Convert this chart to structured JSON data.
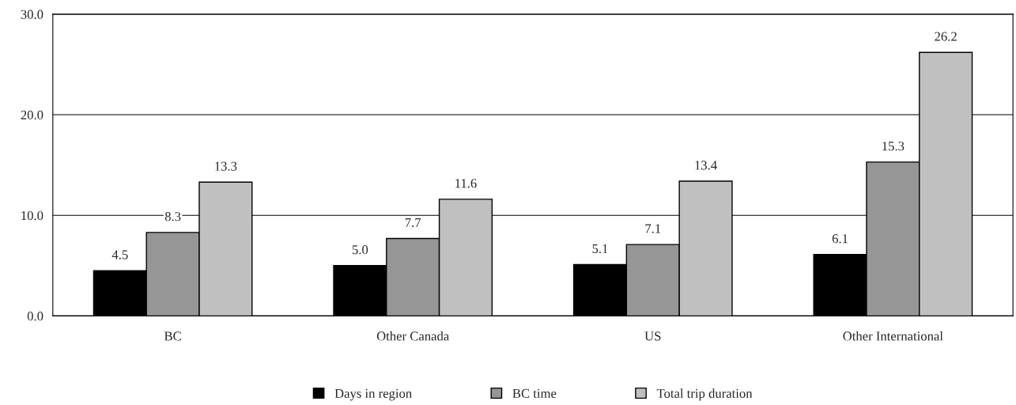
{
  "chart_data": {
    "type": "bar",
    "categories": [
      "BC",
      "Other Canada",
      "US",
      "Other International"
    ],
    "series": [
      {
        "name": "Days in region",
        "color": "#000000",
        "values": [
          4.5,
          5.0,
          5.1,
          6.1
        ],
        "value_labels": [
          "4.5",
          "5.0",
          "5.1",
          "6.1"
        ]
      },
      {
        "name": "BC time",
        "color": "#969696",
        "values": [
          8.3,
          7.7,
          7.1,
          15.3
        ],
        "value_labels": [
          "8.3",
          "7.7",
          "7.1",
          "15.3"
        ]
      },
      {
        "name": "Total trip duration",
        "color": "#c0c0c0",
        "values": [
          13.3,
          11.6,
          13.4,
          26.2
        ],
        "value_labels": [
          "13.3",
          "11.6",
          "13.4",
          "26.2"
        ]
      }
    ],
    "ylim": [
      0,
      30
    ],
    "yticks": [
      {
        "value": 0,
        "label": "0.0"
      },
      {
        "value": 10,
        "label": "10.0"
      },
      {
        "value": 20,
        "label": "20.0"
      },
      {
        "value": 30,
        "label": "30.0"
      }
    ],
    "grid": "y",
    "legend": "bottom"
  }
}
